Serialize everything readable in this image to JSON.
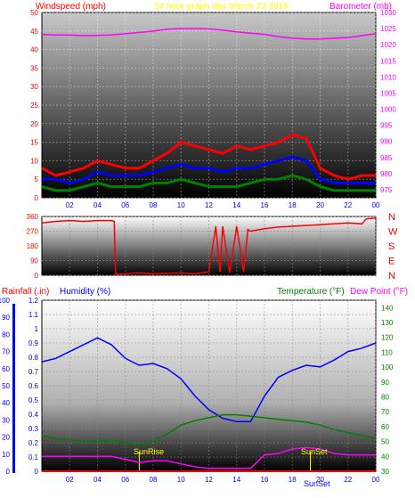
{
  "header": {
    "windspeed_label": "Windspeed (mph)",
    "graph_title": "24 hour graph day   March 23 2018",
    "barometer_label": "Barometer (mb)"
  },
  "lower_header": {
    "rainfall_label": "Rainfall (.in)",
    "humidity_label": "Humidity (%)",
    "temperature_label": "Temperature (°F)",
    "dewpoint_label": "Dew Point (°F)"
  },
  "annotations": {
    "sunrise": "SunRise",
    "sunset": "SunSet",
    "sunset_axis_overlap": "SunSet"
  },
  "colors": {
    "wind_gust": "#ff0000",
    "wind_avg": "#0000ff",
    "wind_low": "#008000",
    "barometer": "#ff00ff",
    "direction": "#ff0000",
    "humidity": "#0000ff",
    "temperature": "#008000",
    "dewpoint": "#ff00ff",
    "rainfall": "#ff0000",
    "title": "#ffff00",
    "sun_marker": "#ffff00"
  },
  "chart_data": [
    {
      "type": "line",
      "name": "wind-and-barometer",
      "x_ticks": [
        "02",
        "04",
        "06",
        "08",
        "10",
        "12",
        "14",
        "16",
        "18",
        "20",
        "22",
        "00"
      ],
      "y_left_ticks": [
        "0",
        "5",
        "10",
        "15",
        "20",
        "25",
        "30",
        "35",
        "40",
        "45",
        "50"
      ],
      "y_left_range": [
        0,
        50
      ],
      "y_right_ticks": [
        "975",
        "980",
        "985",
        "990",
        "995",
        "1000",
        "1005",
        "1010",
        "1015",
        "1020",
        "1025",
        "1030"
      ],
      "y_right_range": [
        972.5,
        1030
      ],
      "hours": [
        0,
        1,
        2,
        3,
        4,
        5,
        6,
        7,
        8,
        9,
        10,
        11,
        12,
        13,
        14,
        15,
        16,
        17,
        18,
        19,
        20,
        21,
        22,
        23,
        24
      ],
      "series": [
        {
          "key": "gust",
          "axis": "left",
          "values": [
            8,
            6,
            7,
            8,
            10,
            9,
            8,
            8,
            10,
            12,
            15,
            14,
            13,
            12,
            14,
            13,
            14,
            15,
            17,
            16,
            8,
            6,
            5,
            6,
            6
          ]
        },
        {
          "key": "avg",
          "axis": "left",
          "values": [
            5,
            5,
            4,
            5,
            7,
            6,
            6,
            6,
            7,
            8,
            9,
            8,
            8,
            7,
            8,
            8,
            9,
            10,
            11,
            10,
            5,
            4,
            4,
            4,
            4
          ]
        },
        {
          "key": "low",
          "axis": "left",
          "values": [
            3,
            2,
            2,
            3,
            4,
            3,
            3,
            3,
            4,
            4,
            5,
            4,
            3,
            3,
            3,
            4,
            5,
            5,
            6,
            5,
            3,
            2,
            2,
            2,
            2
          ]
        },
        {
          "key": "pressure",
          "axis": "right",
          "values": [
            1023.2,
            1023,
            1023,
            1022.8,
            1022.9,
            1023,
            1023.4,
            1023.8,
            1024.2,
            1024.8,
            1025,
            1025,
            1024.9,
            1024.5,
            1024,
            1023.6,
            1023.2,
            1022.5,
            1022,
            1021.8,
            1021.8,
            1022,
            1022.2,
            1022.8,
            1023.4
          ]
        }
      ]
    },
    {
      "type": "line",
      "name": "wind-direction",
      "y_left_ticks": [
        "0",
        "90",
        "180",
        "270",
        "360"
      ],
      "y_left_range": [
        0,
        360
      ],
      "y_right_labels": [
        "N",
        "W",
        "S",
        "E",
        "N"
      ],
      "hours": [
        0,
        1,
        2,
        3,
        4,
        5,
        5.2,
        5.3,
        6,
        7,
        8,
        9,
        10,
        11,
        12,
        12.5,
        12.8,
        13,
        13.5,
        14,
        14.5,
        14.8,
        15,
        16,
        17,
        18,
        19,
        20,
        21,
        22,
        23,
        23.3,
        24
      ],
      "values": [
        320,
        330,
        335,
        330,
        335,
        335,
        330,
        5,
        10,
        15,
        10,
        12,
        14,
        10,
        20,
        300,
        20,
        300,
        15,
        300,
        20,
        280,
        270,
        285,
        295,
        300,
        305,
        310,
        315,
        320,
        315,
        345,
        350
      ]
    },
    {
      "type": "line",
      "name": "rain-humidity-temperature",
      "x_ticks": [
        "02",
        "04",
        "06",
        "08",
        "10",
        "12",
        "14",
        "16",
        "18",
        "20",
        "22",
        "00"
      ],
      "rain_ticks": [
        "0",
        "0.1",
        "0.2",
        "0.3",
        "0.4",
        "0.5",
        "0.6",
        "0.7",
        "0.8",
        "0.9",
        "1",
        "1.1",
        "1.2"
      ],
      "rain_range": [
        0,
        1.2
      ],
      "humidity_ticks": [
        "0",
        "10",
        "20",
        "30",
        "40",
        "50",
        "60",
        "70",
        "80",
        "90",
        "100"
      ],
      "humidity_range": [
        0,
        100
      ],
      "temp_ticks": [
        "30",
        "40",
        "50",
        "60",
        "70",
        "80",
        "90",
        "100",
        "110",
        "120",
        "130",
        "140"
      ],
      "temp_range": [
        30,
        145
      ],
      "hours": [
        0,
        1,
        2,
        3,
        4,
        5,
        6,
        7,
        8,
        9,
        10,
        11,
        12,
        13,
        14,
        15,
        16,
        17,
        18,
        19,
        20,
        21,
        22,
        23,
        24
      ],
      "series": [
        {
          "key": "humidity",
          "axis": "humidity",
          "values": [
            64,
            66,
            70,
            74,
            78,
            74,
            66,
            62,
            63,
            60,
            54,
            44,
            36,
            31,
            29,
            29,
            44,
            55,
            59,
            62,
            61,
            65,
            70,
            72,
            75
          ]
        },
        {
          "key": "temperature",
          "axis": "temp",
          "values": [
            54,
            52,
            51,
            50,
            50,
            50,
            49,
            48,
            50,
            55,
            61,
            64,
            66,
            68,
            68,
            67,
            66,
            65,
            64,
            63,
            61,
            58,
            56,
            54,
            52
          ]
        },
        {
          "key": "dewpoint",
          "axis": "temp",
          "values": [
            40,
            40,
            40,
            40,
            40,
            40,
            38,
            36,
            37,
            37,
            35,
            33,
            32,
            32,
            32,
            32,
            41,
            42,
            45,
            46,
            45,
            42,
            41,
            41,
            41
          ]
        },
        {
          "key": "rainfall",
          "axis": "rain",
          "values": [
            0,
            0,
            0,
            0,
            0,
            0,
            0,
            0,
            0,
            0,
            0,
            0,
            0,
            0,
            0,
            0,
            0,
            0,
            0,
            0,
            0,
            0,
            0,
            0,
            0
          ]
        }
      ],
      "sunrise_hour": 7,
      "sunset_hour": 19.3
    }
  ]
}
